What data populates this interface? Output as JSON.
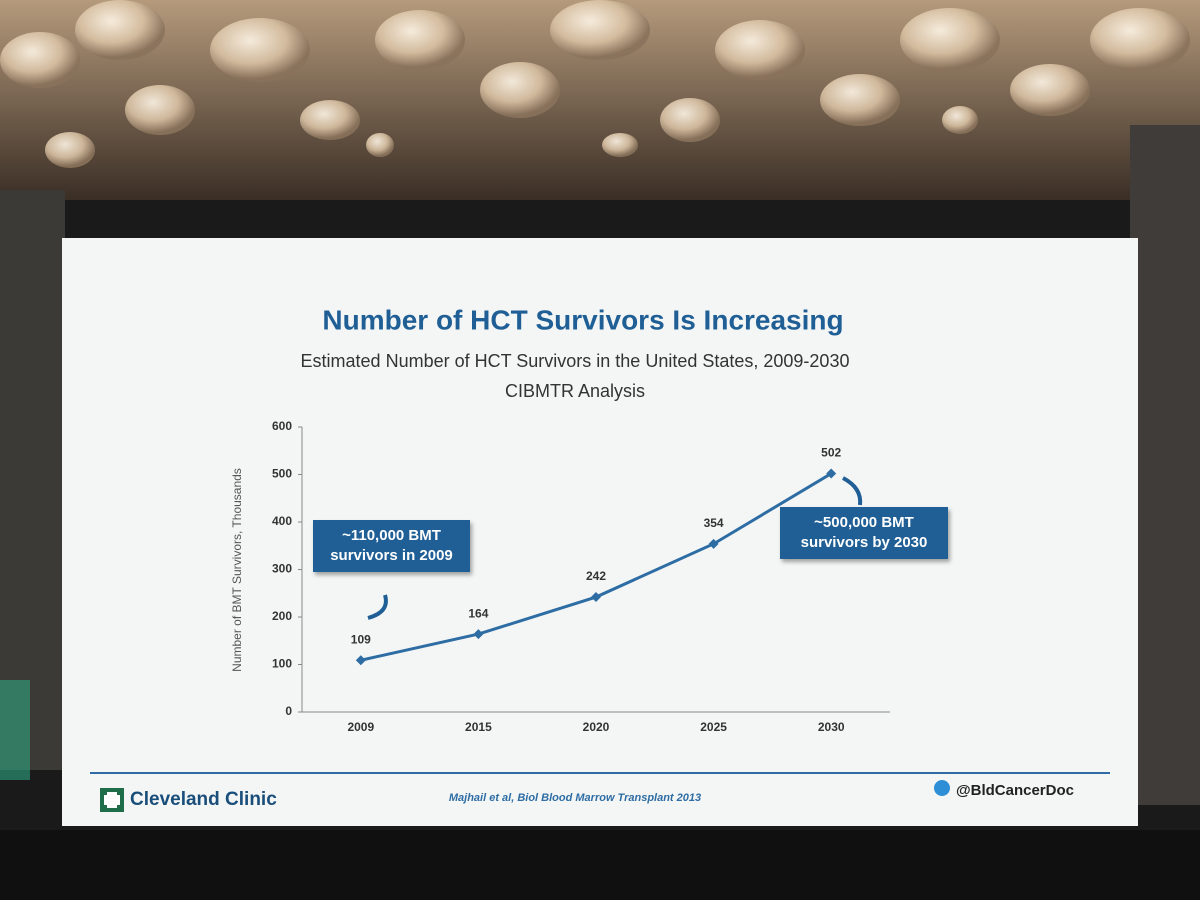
{
  "chart_data": {
    "type": "line",
    "title": "Number of HCT Survivors Is Increasing",
    "subtitle": "Estimated Number of HCT Survivors in the United States, 2009-2030",
    "subtitle_2": "CIBMTR Analysis",
    "y_label": "Number of BMT Survivors, Thousands",
    "categories": [
      "2009",
      "2015",
      "2020",
      "2025",
      "2030"
    ],
    "values": [
      109,
      164,
      242,
      354,
      502
    ],
    "color": "#2e6da4",
    "ylim": [
      0,
      600
    ],
    "yticks": [
      0,
      100,
      200,
      300,
      400,
      500,
      600
    ],
    "annotations": [
      "~110,000 BMT survivors in 2009",
      "~500,000 BMT survivors by 2030"
    ],
    "footer": {
      "brand": "Cleveland Clinic",
      "citation": "Majhail et al, Biol Blood Marrow Transplant 2013",
      "handle": "@BldCancerDoc"
    }
  }
}
